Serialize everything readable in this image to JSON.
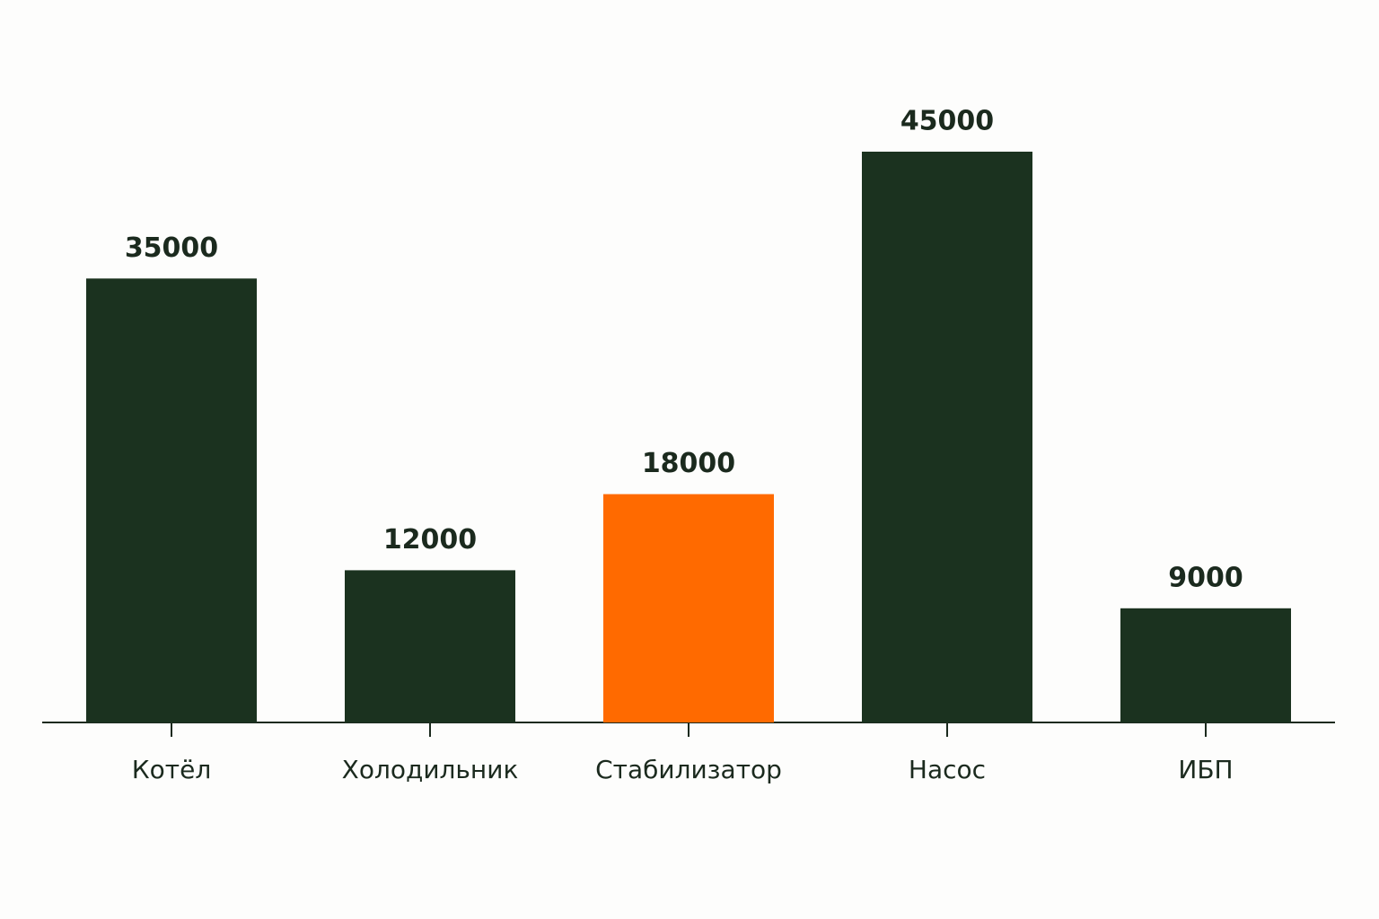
{
  "chart_data": {
    "type": "bar",
    "categories": [
      "Котёл",
      "Холодильник",
      "Стабилизатор",
      "Насос",
      "ИБП"
    ],
    "values": [
      35000,
      12000,
      18000,
      45000,
      9000
    ],
    "colors": [
      "#1b321f",
      "#1b321f",
      "#ff6a00",
      "#1b321f",
      "#1b321f"
    ]
  }
}
